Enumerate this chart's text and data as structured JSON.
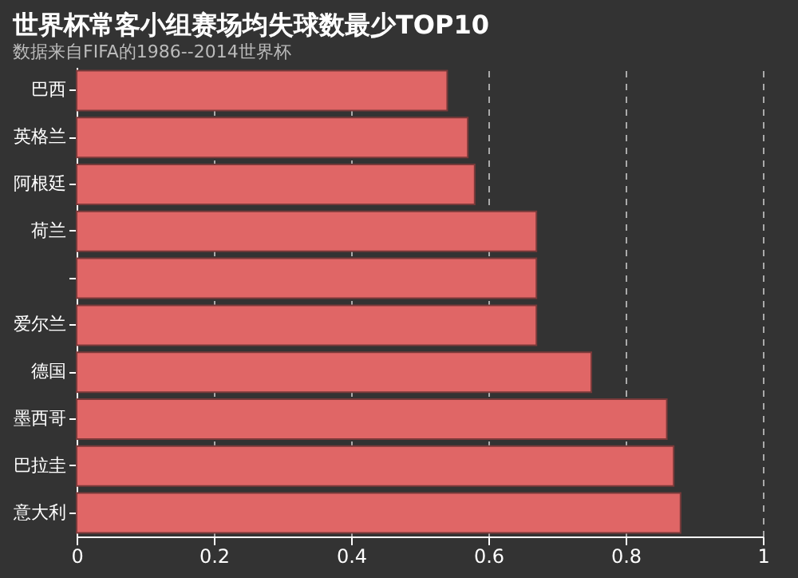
{
  "chart_data": {
    "type": "bar",
    "orientation": "horizontal",
    "title": "世界杯常客小组赛场均失球数最少TOP10",
    "subtitle": "数据来自FIFA的1986--2014世界杯",
    "categories": [
      "巴西",
      "英格兰",
      "阿根廷",
      "荷兰",
      null,
      "爱尔兰",
      "德国",
      "墨西哥",
      "巴拉圭",
      "意大利"
    ],
    "values": [
      0.54,
      0.57,
      0.58,
      0.67,
      0.67,
      0.67,
      0.75,
      0.86,
      0.87,
      0.88
    ],
    "color": "#e06666",
    "xlim": [
      0,
      1
    ],
    "xticks": [
      0,
      0.2,
      0.4,
      0.6,
      0.8,
      1
    ],
    "grid": "x"
  }
}
